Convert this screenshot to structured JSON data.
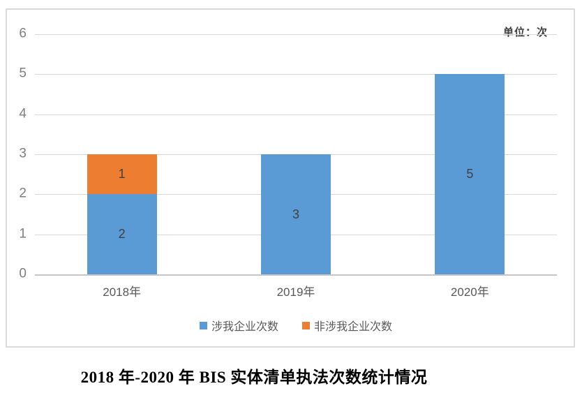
{
  "unit_label": "单位：次",
  "title": "2018 年-2020 年 BIS 实体清单执法次数统计情况",
  "chart_data": {
    "type": "bar",
    "stacked": true,
    "title": "2018 年-2020 年 BIS 实体清单执法次数统计情况",
    "unit": "单位：次",
    "categories": [
      "2018年",
      "2019年",
      "2020年"
    ],
    "series": [
      {
        "name": "涉我企业次数",
        "color": "#5b9bd5",
        "values": [
          2,
          3,
          5
        ]
      },
      {
        "name": "非涉我企业次数",
        "color": "#ed7d31",
        "values": [
          1,
          0,
          0
        ]
      }
    ],
    "ylim": [
      0,
      6
    ],
    "yticks": [
      0,
      1,
      2,
      3,
      4,
      5,
      6
    ],
    "grid": true,
    "data_labels": true,
    "legend_position": "bottom",
    "colors": {
      "gridline": "#d9d9d9",
      "axis_line": "#c6c6c6",
      "tick_label": "#7f7f7f",
      "category_label": "#595959",
      "data_label": "#404040",
      "legend_text": "#595959"
    }
  }
}
